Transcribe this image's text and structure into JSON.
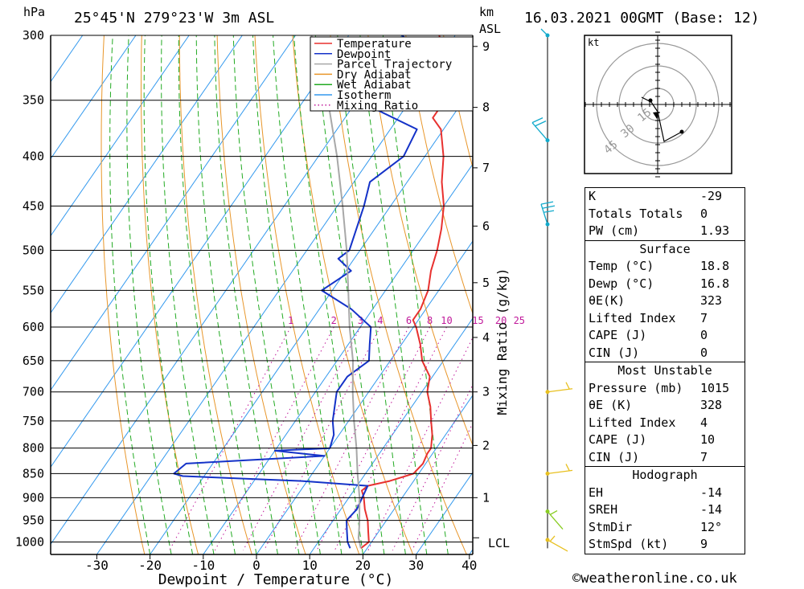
{
  "header": {
    "location": "25°45'N 279°23'W 3m ASL",
    "datetime": "16.03.2021 00GMT (Base: 12)",
    "pressure_unit": "hPa",
    "height_unit_1": "km",
    "height_unit_2": "ASL"
  },
  "chart_data": {
    "type": "skew-t",
    "xlabel": "Dewpoint / Temperature (°C)",
    "y2label": "Mixing Ratio (g/kg)",
    "pressure_levels": [
      300,
      350,
      400,
      450,
      500,
      550,
      600,
      650,
      700,
      750,
      800,
      850,
      900,
      950,
      1000
    ],
    "x_ticks": [
      -30,
      -20,
      -10,
      0,
      10,
      20,
      30,
      40
    ],
    "km_ticks": [
      1,
      2,
      3,
      4,
      5,
      6,
      7,
      8,
      9
    ],
    "lcl_label": "LCL",
    "mixing_ratio_labels": [
      "1",
      "2",
      "3",
      "4",
      "6",
      "8",
      "10",
      "15",
      "20",
      "25"
    ],
    "legend": [
      "Temperature",
      "Dewpoint",
      "Parcel Trajectory",
      "Dry Adiabat",
      "Wet Adiabat",
      "Isotherm",
      "Mixing Ratio"
    ],
    "series": [
      {
        "name": "Temperature",
        "color": "#e8312f",
        "points": [
          [
            1015,
            18.8
          ],
          [
            1000,
            19.5
          ],
          [
            975,
            18
          ],
          [
            950,
            16.5
          ],
          [
            925,
            14.5
          ],
          [
            900,
            12.8
          ],
          [
            885,
            11.5
          ],
          [
            875,
            12
          ],
          [
            865,
            15.5
          ],
          [
            850,
            19
          ],
          [
            830,
            19.5
          ],
          [
            810,
            19
          ],
          [
            800,
            19
          ],
          [
            775,
            17.5
          ],
          [
            750,
            15.5
          ],
          [
            725,
            13.5
          ],
          [
            700,
            11
          ],
          [
            675,
            9.5
          ],
          [
            650,
            6
          ],
          [
            625,
            3.5
          ],
          [
            600,
            0.5
          ],
          [
            590,
            -1
          ],
          [
            575,
            -1
          ],
          [
            550,
            -2
          ],
          [
            525,
            -4
          ],
          [
            500,
            -5.5
          ],
          [
            475,
            -7.5
          ],
          [
            450,
            -10
          ],
          [
            425,
            -13.5
          ],
          [
            400,
            -16.5
          ],
          [
            375,
            -20.5
          ],
          [
            365,
            -23.5
          ],
          [
            350,
            -23.5
          ],
          [
            340,
            -25
          ],
          [
            320,
            -28
          ],
          [
            300,
            -33
          ]
        ]
      },
      {
        "name": "Dewpoint",
        "color": "#1432c8",
        "points": [
          [
            1015,
            16.8
          ],
          [
            1000,
            15.5
          ],
          [
            975,
            14
          ],
          [
            950,
            12.5
          ],
          [
            925,
            13
          ],
          [
            900,
            12.5
          ],
          [
            875,
            12
          ],
          [
            865,
            -1
          ],
          [
            855,
            -24
          ],
          [
            850,
            -26
          ],
          [
            830,
            -25
          ],
          [
            815,
            0
          ],
          [
            805,
            -10
          ],
          [
            800,
            0
          ],
          [
            775,
            -1
          ],
          [
            750,
            -3
          ],
          [
            700,
            -6
          ],
          [
            675,
            -6
          ],
          [
            650,
            -4
          ],
          [
            625,
            -6
          ],
          [
            600,
            -8
          ],
          [
            575,
            -14
          ],
          [
            550,
            -22
          ],
          [
            525,
            -19
          ],
          [
            510,
            -23
          ],
          [
            500,
            -22
          ],
          [
            450,
            -25
          ],
          [
            425,
            -27
          ],
          [
            400,
            -24
          ],
          [
            375,
            -25
          ],
          [
            350,
            -40
          ],
          [
            340,
            -38
          ],
          [
            320,
            -30
          ],
          [
            300,
            -40
          ]
        ]
      },
      {
        "name": "Parcel Trajectory",
        "color": "#a8a8a8",
        "points": [
          [
            1015,
            18.8
          ],
          [
            990,
            17
          ],
          [
            960,
            15.5
          ],
          [
            900,
            12
          ],
          [
            850,
            8.5
          ],
          [
            800,
            5
          ],
          [
            750,
            1
          ],
          [
            700,
            -3
          ],
          [
            650,
            -7
          ],
          [
            600,
            -12
          ],
          [
            550,
            -17
          ],
          [
            500,
            -22.5
          ],
          [
            450,
            -29
          ],
          [
            400,
            -36.5
          ],
          [
            350,
            -45.5
          ],
          [
            300,
            -57
          ]
        ]
      }
    ],
    "wind_barbs_pressure": [
      300,
      385,
      470,
      700,
      850,
      930,
      995
    ],
    "hodograph_unit": "kt",
    "hodograph_ring_labels": [
      "15",
      "30",
      "45"
    ]
  },
  "indices": {
    "rows": [
      {
        "label": "K",
        "value": "-29"
      },
      {
        "label": "Totals Totals",
        "value": "0"
      },
      {
        "label": "PW (cm)",
        "value": "1.93"
      }
    ]
  },
  "surface": {
    "title": "Surface",
    "rows": [
      {
        "label": "Temp (°C)",
        "value": "18.8"
      },
      {
        "label": "Dewp (°C)",
        "value": "16.8"
      },
      {
        "label": "θE(K)",
        "value": "323"
      },
      {
        "label": "Lifted Index",
        "value": "7"
      },
      {
        "label": "CAPE (J)",
        "value": "0"
      },
      {
        "label": "CIN (J)",
        "value": "0"
      }
    ]
  },
  "most_unstable": {
    "title": "Most Unstable",
    "rows": [
      {
        "label": "Pressure (mb)",
        "value": "1015"
      },
      {
        "label": "θE (K)",
        "value": "328"
      },
      {
        "label": "Lifted Index",
        "value": "4"
      },
      {
        "label": "CAPE (J)",
        "value": "10"
      },
      {
        "label": "CIN (J)",
        "value": "7"
      }
    ]
  },
  "hodograph": {
    "title": "Hodograph",
    "rows": [
      {
        "label": "EH",
        "value": "-14"
      },
      {
        "label": "SREH",
        "value": "-14"
      },
      {
        "label": "StmDir",
        "value": "12°"
      },
      {
        "label": "StmSpd (kt)",
        "value": "9"
      }
    ]
  },
  "footer": {
    "credit": "©weatheronline.co.uk"
  }
}
